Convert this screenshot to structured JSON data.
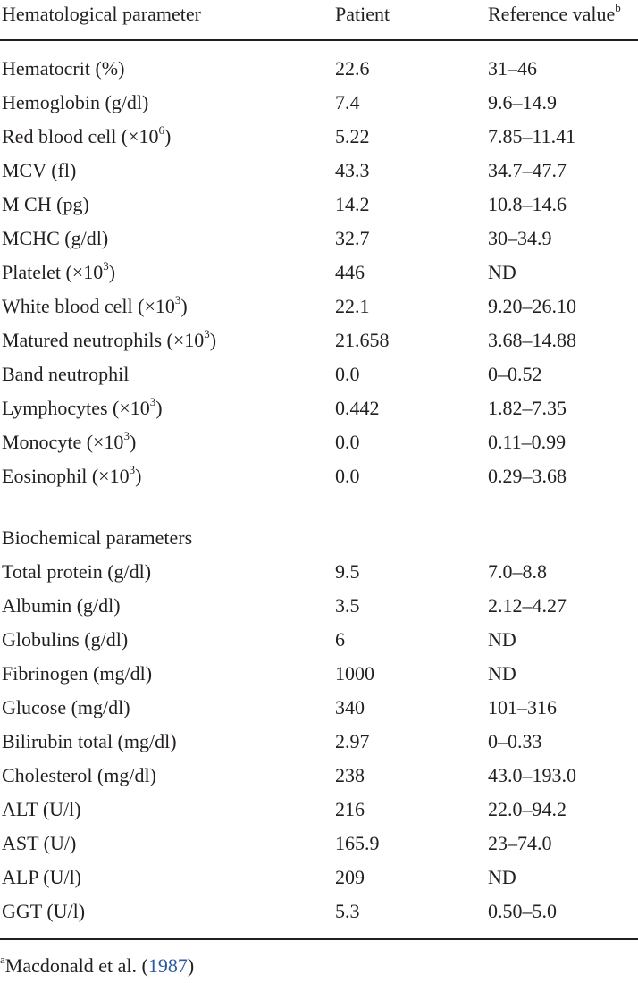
{
  "header": {
    "col1": "Hematological parameter",
    "col2": "Patient",
    "col3": "Reference value",
    "col3_sup": "b"
  },
  "hematological_rows": [
    {
      "param": "Hematocrit (%)",
      "sup": "",
      "suffix": "",
      "patient": "22.6",
      "reference": "31–46"
    },
    {
      "param": "Hemoglobin (g/dl)",
      "sup": "",
      "suffix": "",
      "patient": "7.4",
      "reference": "9.6–14.9"
    },
    {
      "param": "Red blood cell (×10",
      "sup": "6",
      "suffix": ")",
      "patient": "5.22",
      "reference": "7.85–11.41"
    },
    {
      "param": "MCV (fl)",
      "sup": "",
      "suffix": "",
      "patient": "43.3",
      "reference": "34.7–47.7"
    },
    {
      "param": "M CH (pg)",
      "sup": "",
      "suffix": "",
      "patient": "14.2",
      "reference": "10.8–14.6"
    },
    {
      "param": "MCHC (g/dl)",
      "sup": "",
      "suffix": "",
      "patient": "32.7",
      "reference": "30–34.9"
    },
    {
      "param": "Platelet (×10",
      "sup": "3",
      "suffix": ")",
      "patient": "446",
      "reference": "ND"
    },
    {
      "param": "White blood cell (×10",
      "sup": "3",
      "suffix": ")",
      "patient": "22.1",
      "reference": "9.20–26.10"
    },
    {
      "param": "Matured neutrophils (×10",
      "sup": "3",
      "suffix": ")",
      "patient": "21.658",
      "reference": "3.68–14.88"
    },
    {
      "param": "Band neutrophil",
      "sup": "",
      "suffix": "",
      "patient": "0.0",
      "reference": "0–0.52"
    },
    {
      "param": "Lymphocytes (×10",
      "sup": "3",
      "suffix": ")",
      "patient": "0.442",
      "reference": "1.82–7.35"
    },
    {
      "param": "Monocyte (×10",
      "sup": "3",
      "suffix": ")",
      "patient": "0.0",
      "reference": "0.11–0.99"
    },
    {
      "param": "Eosinophil (×10",
      "sup": "3",
      "suffix": ")",
      "patient": "0.0",
      "reference": "0.29–3.68"
    }
  ],
  "biochemical_heading": "Biochemical parameters",
  "biochemical_rows": [
    {
      "param": "Total protein (g/dl)",
      "patient": "9.5",
      "reference": "7.0–8.8"
    },
    {
      "param": "Albumin (g/dl)",
      "patient": "3.5",
      "reference": "2.12–4.27"
    },
    {
      "param": "Globulins (g/dl)",
      "patient": "6",
      "reference": "ND"
    },
    {
      "param": "Fibrinogen (mg/dl)",
      "patient": "1000",
      "reference": "ND"
    },
    {
      "param": "Glucose (mg/dl)",
      "patient": "340",
      "reference": "101–316"
    },
    {
      "param": "Bilirubin total (mg/dl)",
      "patient": "2.97",
      "reference": "0–0.33"
    },
    {
      "param": "Cholesterol (mg/dl)",
      "patient": "238",
      "reference": "43.0–193.0"
    },
    {
      "param": "ALT (U/l)",
      "patient": "216",
      "reference": "22.0–94.2"
    },
    {
      "param": "AST (U/)",
      "patient": "165.9",
      "reference": "23–74.0"
    },
    {
      "param": "ALP (U/l)",
      "patient": "209",
      "reference": "ND"
    },
    {
      "param": "GGT (U/l)",
      "patient": "5.3",
      "reference": "0.50–5.0"
    }
  ],
  "footnote": {
    "marker": "a",
    "text": "Macdonald et al. (",
    "link": "1987",
    "close": ")"
  }
}
